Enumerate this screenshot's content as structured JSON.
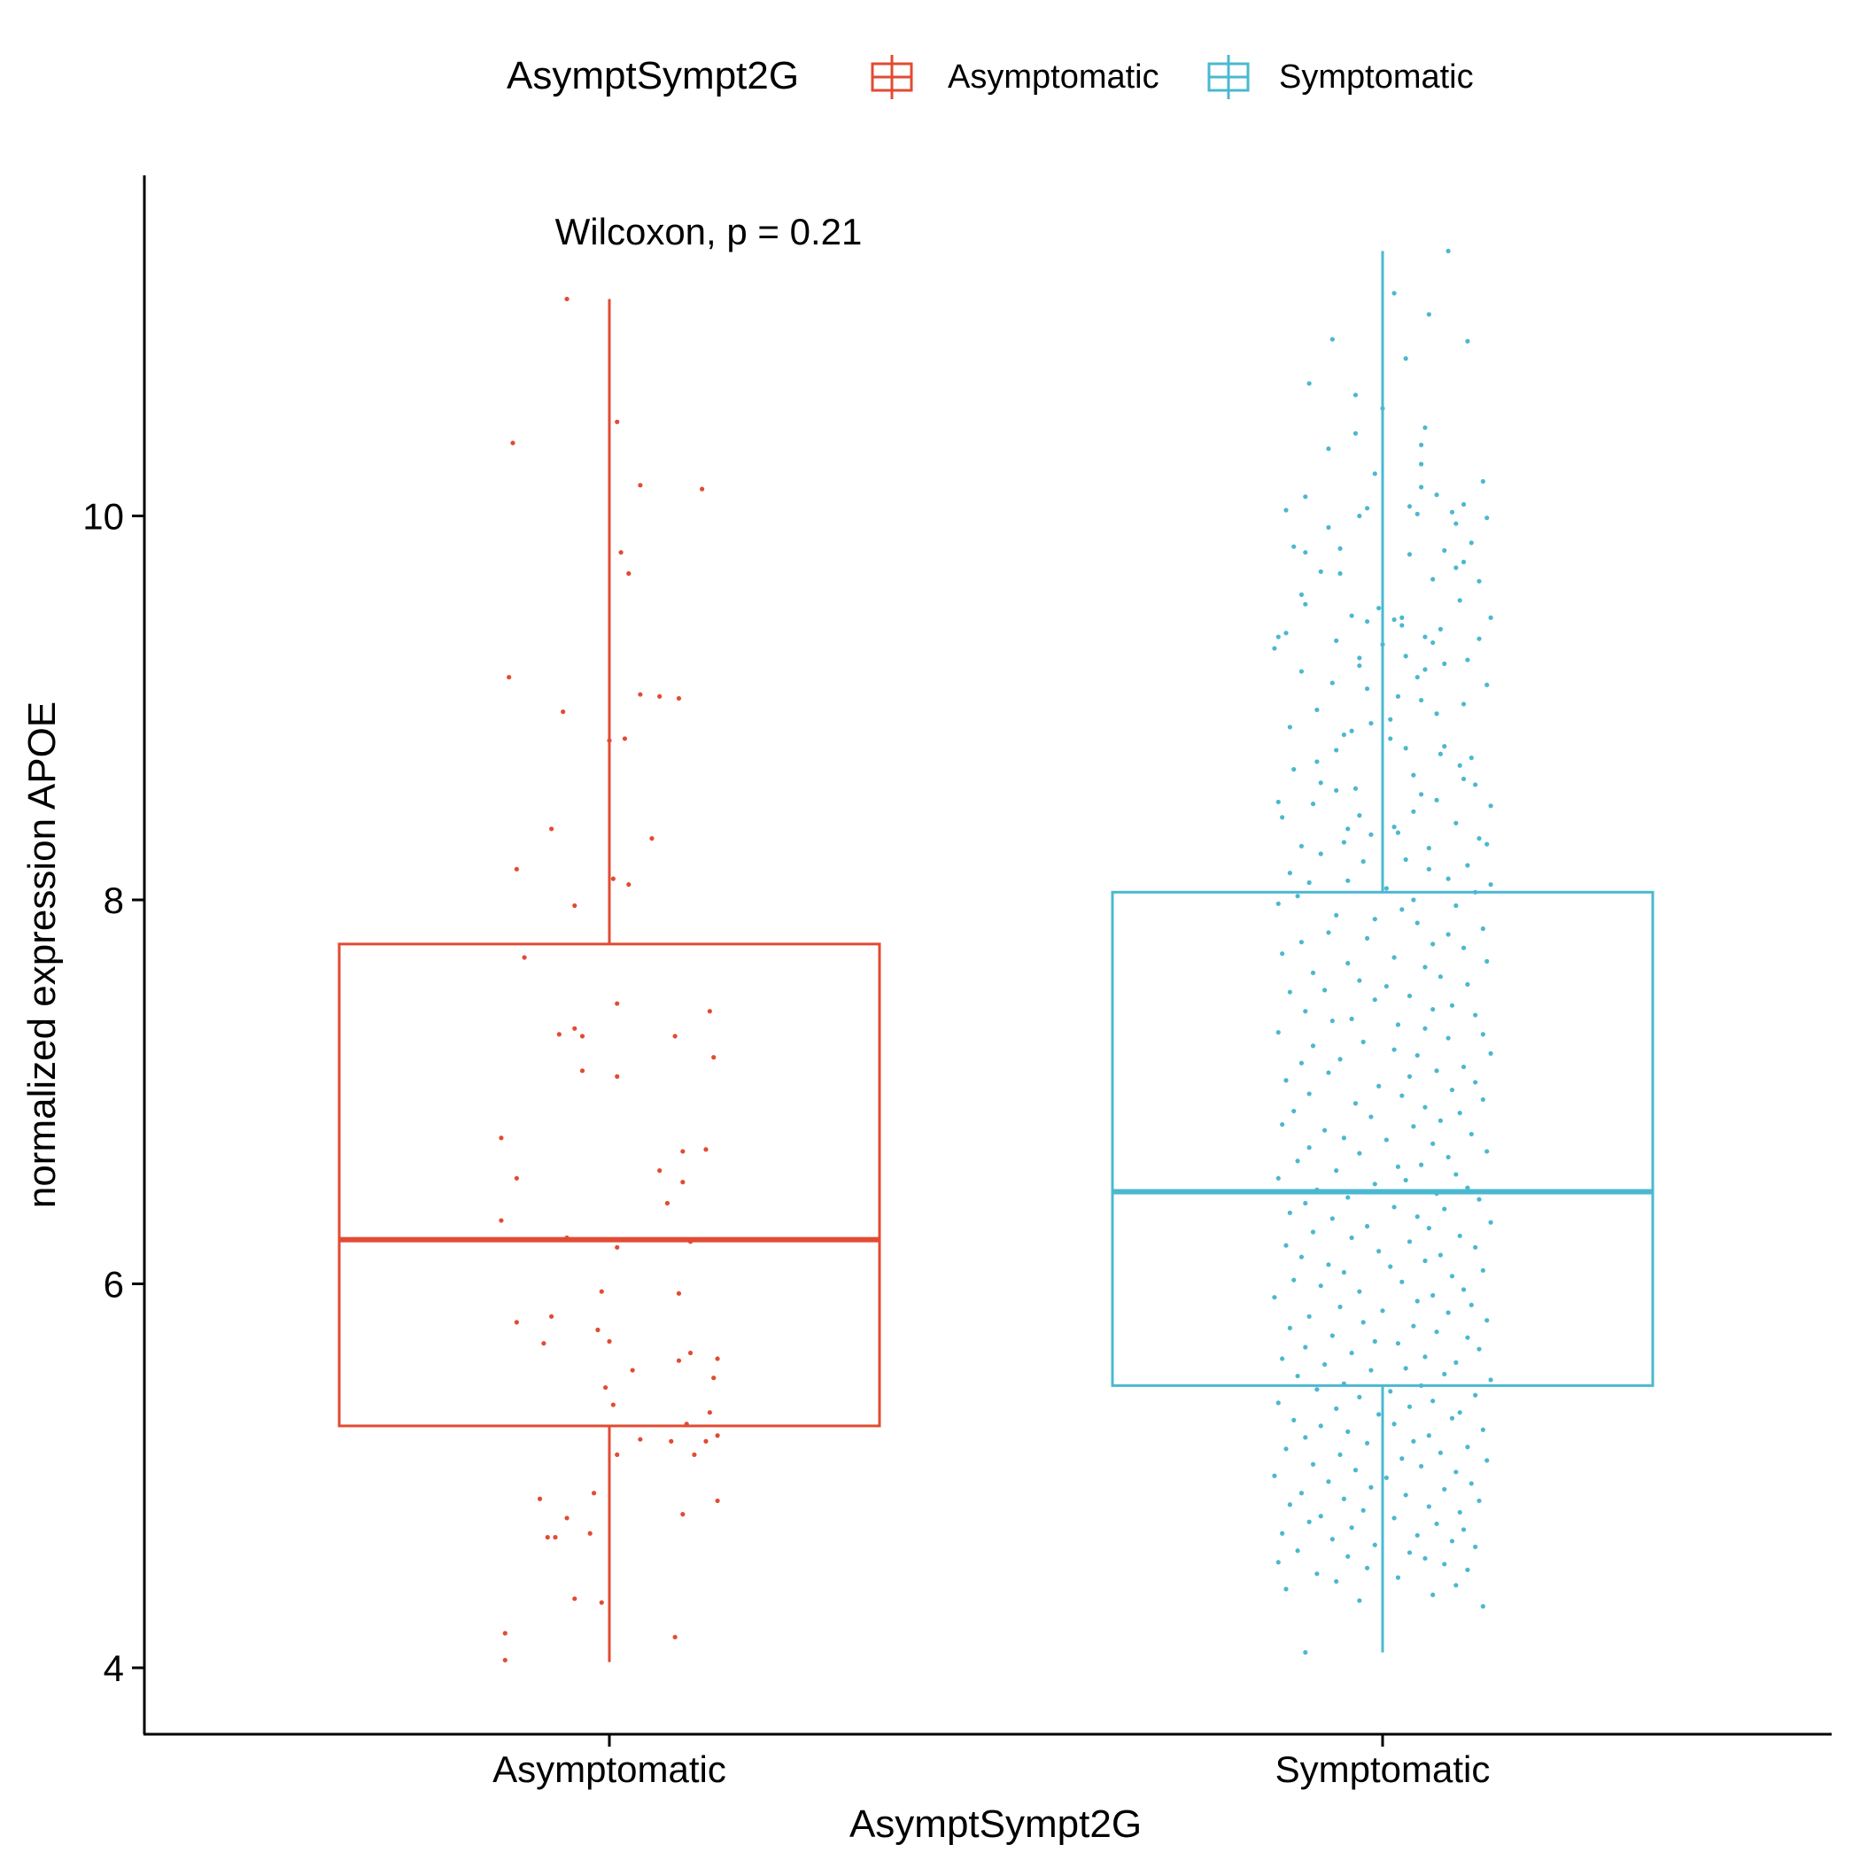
{
  "chart_data": {
    "type": "boxplot",
    "xlabel": "AsymptSympt2G",
    "ylabel": "normalized expression APOE",
    "ylim": [
      3.6,
      11.8
    ],
    "yticks": [
      4,
      6,
      8,
      10
    ],
    "categories": [
      "Asymptomatic",
      "Symptomatic"
    ],
    "legend": {
      "title": "AsymptSympt2G",
      "position": "top",
      "entries": [
        "Asymptomatic",
        "Symptomatic"
      ]
    },
    "annotation": "Wilcoxon, p = 0.21",
    "grid": false,
    "series": [
      {
        "name": "Asymptomatic",
        "color": "#E24B33",
        "box": {
          "min": 4.03,
          "q1": 5.26,
          "median": 6.23,
          "q3": 7.77,
          "max": 11.13
        },
        "points": [
          11.13,
          10.49,
          10.38,
          10.16,
          10.14,
          9.81,
          9.7,
          9.16,
          9.07,
          9.06,
          9.05,
          8.98,
          8.83,
          8.84,
          8.37,
          8.32,
          8.16,
          8.11,
          8.08,
          7.97,
          7.7,
          7.46,
          7.42,
          7.33,
          7.3,
          7.29,
          7.29,
          7.18,
          7.11,
          7.08,
          6.76,
          6.7,
          6.69,
          6.59,
          6.55,
          6.53,
          6.42,
          6.33,
          6.24,
          6.23,
          6.22,
          6.19,
          5.96,
          5.95,
          5.83,
          5.8,
          5.76,
          5.7,
          5.69,
          5.64,
          5.61,
          5.6,
          5.55,
          5.51,
          5.46,
          5.37,
          5.33,
          5.27,
          5.21,
          5.19,
          5.18,
          5.18,
          5.11,
          5.11,
          4.91,
          4.88,
          4.87,
          4.8,
          4.78,
          4.7,
          4.68,
          4.68,
          4.36,
          4.34,
          4.18,
          4.16,
          4.04
        ],
        "jitter": [
          -0.11,
          0.02,
          -0.25,
          0.08,
          0.24,
          0.03,
          0.05,
          -0.26,
          0.08,
          0.13,
          0.18,
          -0.12,
          0.0,
          0.04,
          -0.15,
          0.11,
          -0.24,
          0.01,
          0.05,
          -0.09,
          -0.22,
          0.02,
          0.26,
          -0.09,
          -0.13,
          -0.07,
          0.17,
          0.27,
          -0.07,
          0.02,
          -0.28,
          0.25,
          0.19,
          0.13,
          -0.24,
          0.19,
          0.15,
          -0.28,
          -0.11,
          -0.04,
          0.21,
          0.02,
          -0.02,
          0.18,
          -0.15,
          -0.24,
          -0.03,
          0.0,
          -0.17,
          0.21,
          0.28,
          0.18,
          0.06,
          0.27,
          -0.01,
          0.01,
          0.26,
          0.2,
          0.28,
          0.08,
          0.16,
          0.25,
          0.02,
          0.22,
          -0.04,
          -0.18,
          0.28,
          0.19,
          -0.11,
          -0.05,
          -0.16,
          -0.14,
          -0.09,
          -0.02,
          -0.27,
          0.17,
          -0.27
        ]
      },
      {
        "name": "Symptomatic",
        "color": "#4BB8D0",
        "box": {
          "min": 4.08,
          "q1": 5.47,
          "median": 6.48,
          "q3": 8.04,
          "max": 11.38
        },
        "points": [
          11.38,
          11.16,
          11.05,
          10.92,
          10.91,
          10.82,
          10.69,
          10.63,
          10.56,
          10.46,
          10.43,
          10.37,
          10.35,
          10.27,
          10.22,
          10.18,
          10.15,
          10.11,
          10.1,
          10.06,
          10.05,
          10.04,
          10.03,
          10.02,
          10.01,
          10.0,
          9.99,
          9.96,
          9.94,
          9.86,
          9.84,
          9.83,
          9.82,
          9.81,
          9.8,
          9.76,
          9.73,
          9.71,
          9.7,
          9.67,
          9.66,
          9.59,
          9.56,
          9.54,
          9.52,
          9.48,
          9.47,
          9.47,
          9.46,
          9.45,
          9.43,
          9.41,
          9.39,
          9.37,
          9.37,
          9.36,
          9.35,
          9.34,
          9.33,
          9.31,
          9.27,
          9.26,
          9.25,
          9.23,
          9.22,
          9.2,
          9.19,
          9.16,
          9.13,
          9.12,
          9.1,
          9.06,
          9.04,
          9.02,
          8.99,
          8.97,
          8.94,
          8.92,
          8.9,
          8.88,
          8.86,
          8.84,
          8.8,
          8.79,
          8.78,
          8.76,
          8.74,
          8.72,
          8.7,
          8.68,
          8.65,
          8.63,
          8.61,
          8.6,
          8.58,
          8.57,
          8.55,
          8.52,
          8.51,
          8.5,
          8.49,
          8.46,
          8.44,
          8.43,
          8.4,
          8.38,
          8.37,
          8.35,
          8.34,
          8.32,
          8.3,
          8.29,
          8.28,
          8.27,
          8.24,
          8.21,
          8.2,
          8.18,
          8.16,
          8.14,
          8.11,
          8.1,
          8.09,
          8.08,
          8.06,
          8.04,
          8.02,
          8.0,
          7.98,
          7.97,
          7.95,
          7.92,
          7.9,
          7.88,
          7.85,
          7.83,
          7.82,
          7.8,
          7.78,
          7.77,
          7.75,
          7.72,
          7.7,
          7.68,
          7.67,
          7.65,
          7.62,
          7.6,
          7.58,
          7.56,
          7.55,
          7.53,
          7.52,
          7.5,
          7.48,
          7.45,
          7.43,
          7.42,
          7.4,
          7.38,
          7.37,
          7.35,
          7.33,
          7.31,
          7.3,
          7.28,
          7.26,
          7.24,
          7.22,
          7.2,
          7.19,
          7.17,
          7.15,
          7.13,
          7.11,
          7.1,
          7.08,
          7.06,
          7.05,
          7.03,
          7.01,
          6.99,
          6.98,
          6.96,
          6.94,
          6.92,
          6.9,
          6.89,
          6.87,
          6.85,
          6.83,
          6.82,
          6.8,
          6.78,
          6.76,
          6.75,
          6.73,
          6.71,
          6.69,
          6.68,
          6.66,
          6.64,
          6.62,
          6.61,
          6.59,
          6.57,
          6.55,
          6.54,
          6.52,
          6.5,
          6.49,
          6.47,
          6.45,
          6.44,
          6.42,
          6.4,
          6.39,
          6.37,
          6.35,
          6.34,
          6.32,
          6.3,
          6.29,
          6.27,
          6.25,
          6.24,
          6.22,
          6.2,
          6.19,
          6.17,
          6.15,
          6.14,
          6.12,
          6.1,
          6.09,
          6.07,
          6.06,
          6.04,
          6.02,
          6.01,
          5.99,
          5.97,
          5.96,
          5.94,
          5.93,
          5.91,
          5.89,
          5.88,
          5.86,
          5.85,
          5.83,
          5.81,
          5.8,
          5.78,
          5.77,
          5.75,
          5.73,
          5.72,
          5.7,
          5.69,
          5.67,
          5.66,
          5.64,
          5.62,
          5.61,
          5.59,
          5.58,
          5.56,
          5.55,
          5.53,
          5.52,
          5.5,
          5.48,
          5.47,
          5.45,
          5.44,
          5.42,
          5.41,
          5.39,
          5.38,
          5.36,
          5.35,
          5.33,
          5.32,
          5.3,
          5.29,
          5.27,
          5.26,
          5.24,
          5.23,
          5.21,
          5.2,
          5.18,
          5.17,
          5.15,
          5.14,
          5.12,
          5.11,
          5.09,
          5.08,
          5.06,
          5.05,
          5.03,
          5.02,
          5.0,
          4.99,
          4.97,
          4.96,
          4.94,
          4.93,
          4.91,
          4.9,
          4.88,
          4.87,
          4.85,
          4.84,
          4.82,
          4.81,
          4.79,
          4.78,
          4.76,
          4.75,
          4.73,
          4.72,
          4.7,
          4.69,
          4.67,
          4.66,
          4.64,
          4.63,
          4.61,
          4.6,
          4.58,
          4.57,
          4.55,
          4.54,
          4.52,
          4.51,
          4.49,
          4.47,
          4.45,
          4.43,
          4.41,
          4.38,
          4.35,
          4.32,
          4.08
        ],
        "jitter": [
          0.17,
          0.03,
          0.12,
          -0.13,
          0.22,
          0.06,
          -0.19,
          -0.07,
          0.0,
          0.11,
          -0.07,
          0.1,
          -0.14,
          0.1,
          -0.02,
          0.26,
          0.1,
          0.14,
          -0.2,
          0.21,
          0.07,
          -0.04,
          -0.25,
          0.18,
          0.09,
          -0.06,
          0.27,
          0.19,
          -0.14,
          0.23,
          -0.23,
          -0.11,
          0.16,
          -0.2,
          0.07,
          0.21,
          0.19,
          -0.16,
          -0.11,
          0.13,
          0.25,
          -0.21,
          0.2,
          -0.2,
          -0.01,
          -0.08,
          0.05,
          0.28,
          0.03,
          -0.04,
          0.05,
          0.15,
          -0.25,
          0.11,
          -0.27,
          0.25,
          -0.12,
          0.13,
          0.0,
          -0.28,
          0.06,
          -0.06,
          0.22,
          0.16,
          -0.06,
          0.11,
          -0.21,
          0.09,
          -0.13,
          0.27,
          -0.04,
          0.04,
          0.1,
          0.21,
          -0.17,
          0.14,
          0.02,
          -0.03,
          -0.24,
          -0.08,
          -0.1,
          0.02,
          0.16,
          0.06,
          -0.12,
          0.15,
          0.23,
          -0.17,
          0.2,
          -0.23,
          0.08,
          0.21,
          -0.16,
          0.24,
          -0.07,
          -0.12,
          0.1,
          0.14,
          -0.27,
          -0.18,
          0.28,
          0.08,
          -0.06,
          -0.26,
          0.19,
          0.03,
          -0.09,
          0.04,
          -0.03,
          0.25,
          -0.1,
          0.27,
          -0.21,
          0.12,
          -0.16,
          0.06,
          -0.05,
          0.22,
          0.12,
          -0.24,
          0.17,
          -0.09,
          -0.19,
          0.28,
          0.01,
          0.24,
          -0.22,
          0.08,
          -0.27,
          0.19,
          0.05,
          -0.12,
          -0.02,
          0.09,
          0.26,
          -0.14,
          0.17,
          -0.04,
          -0.21,
          0.13,
          0.21,
          -0.26,
          0.03,
          0.27,
          -0.09,
          0.11,
          -0.18,
          0.15,
          -0.06,
          0.22,
          0.01,
          -0.15,
          -0.24,
          0.07,
          -0.02,
          0.18,
          0.13,
          -0.2,
          0.24,
          -0.08,
          -0.13,
          0.04,
          0.11,
          -0.27,
          0.26,
          0.17,
          -0.05,
          -0.18,
          0.03,
          0.28,
          0.09,
          -0.11,
          -0.21,
          0.21,
          0.14,
          -0.14,
          0.07,
          -0.25,
          0.24,
          -0.01,
          0.18,
          -0.19,
          0.05,
          0.26,
          -0.07,
          0.11,
          -0.23,
          0.2,
          -0.03,
          0.15,
          -0.26,
          0.08,
          -0.15,
          0.23,
          -0.1,
          0.01,
          0.13,
          -0.19,
          0.27,
          -0.06,
          0.17,
          -0.22,
          0.1,
          0.04,
          -0.12,
          0.19,
          -0.27,
          0.06,
          -0.02,
          0.22,
          -0.17,
          0.14,
          -0.09,
          0.25,
          -0.2,
          0.03,
          0.16,
          -0.24,
          0.09,
          -0.13,
          0.28,
          -0.04,
          0.12,
          -0.18,
          0.2,
          -0.08,
          0.07,
          -0.25,
          0.24,
          -0.01,
          0.15,
          -0.21,
          0.11,
          -0.14,
          0.02,
          0.26,
          -0.1,
          0.18,
          -0.23,
          0.05,
          -0.16,
          0.21,
          -0.06,
          0.13,
          -0.28,
          0.09,
          0.23,
          -0.11,
          0.0,
          0.17,
          -0.19,
          0.27,
          -0.05,
          0.08,
          -0.24,
          0.14,
          -0.13,
          0.22,
          -0.02,
          0.04,
          -0.2,
          0.25,
          -0.08,
          0.11,
          -0.26,
          0.19,
          -0.15,
          0.06,
          -0.03,
          0.16,
          -0.22,
          0.28,
          -0.1,
          0.1,
          -0.17,
          0.02,
          0.24,
          -0.06,
          0.13,
          -0.27,
          0.07,
          -0.12,
          0.2,
          -0.01,
          0.18,
          -0.23,
          0.03,
          -0.16,
          0.26,
          -0.09,
          0.12,
          -0.2,
          0.08,
          -0.04,
          0.22,
          -0.25,
          0.15,
          -0.11,
          0.05,
          0.27,
          -0.18,
          0.1,
          -0.07,
          0.19,
          -0.28,
          0.01,
          -0.14,
          0.23,
          -0.03,
          0.16,
          -0.21,
          0.06,
          -0.1,
          0.25,
          -0.24,
          0.12,
          -0.05,
          0.2,
          -0.16,
          0.03,
          -0.19,
          0.14,
          -0.08,
          0.21,
          -0.26,
          0.09,
          -0.13,
          0.18,
          -0.02,
          0.24,
          -0.22,
          0.07,
          -0.09,
          0.11,
          -0.27,
          0.16,
          -0.04,
          0.22,
          -0.17,
          0.04,
          -0.12,
          0.19,
          -0.25,
          0.13,
          -0.06,
          0.26,
          -0.2,
          0.08,
          -0.11,
          0.2,
          -0.15,
          0.17,
          -0.22,
          0.0
        ]
      }
    ]
  }
}
